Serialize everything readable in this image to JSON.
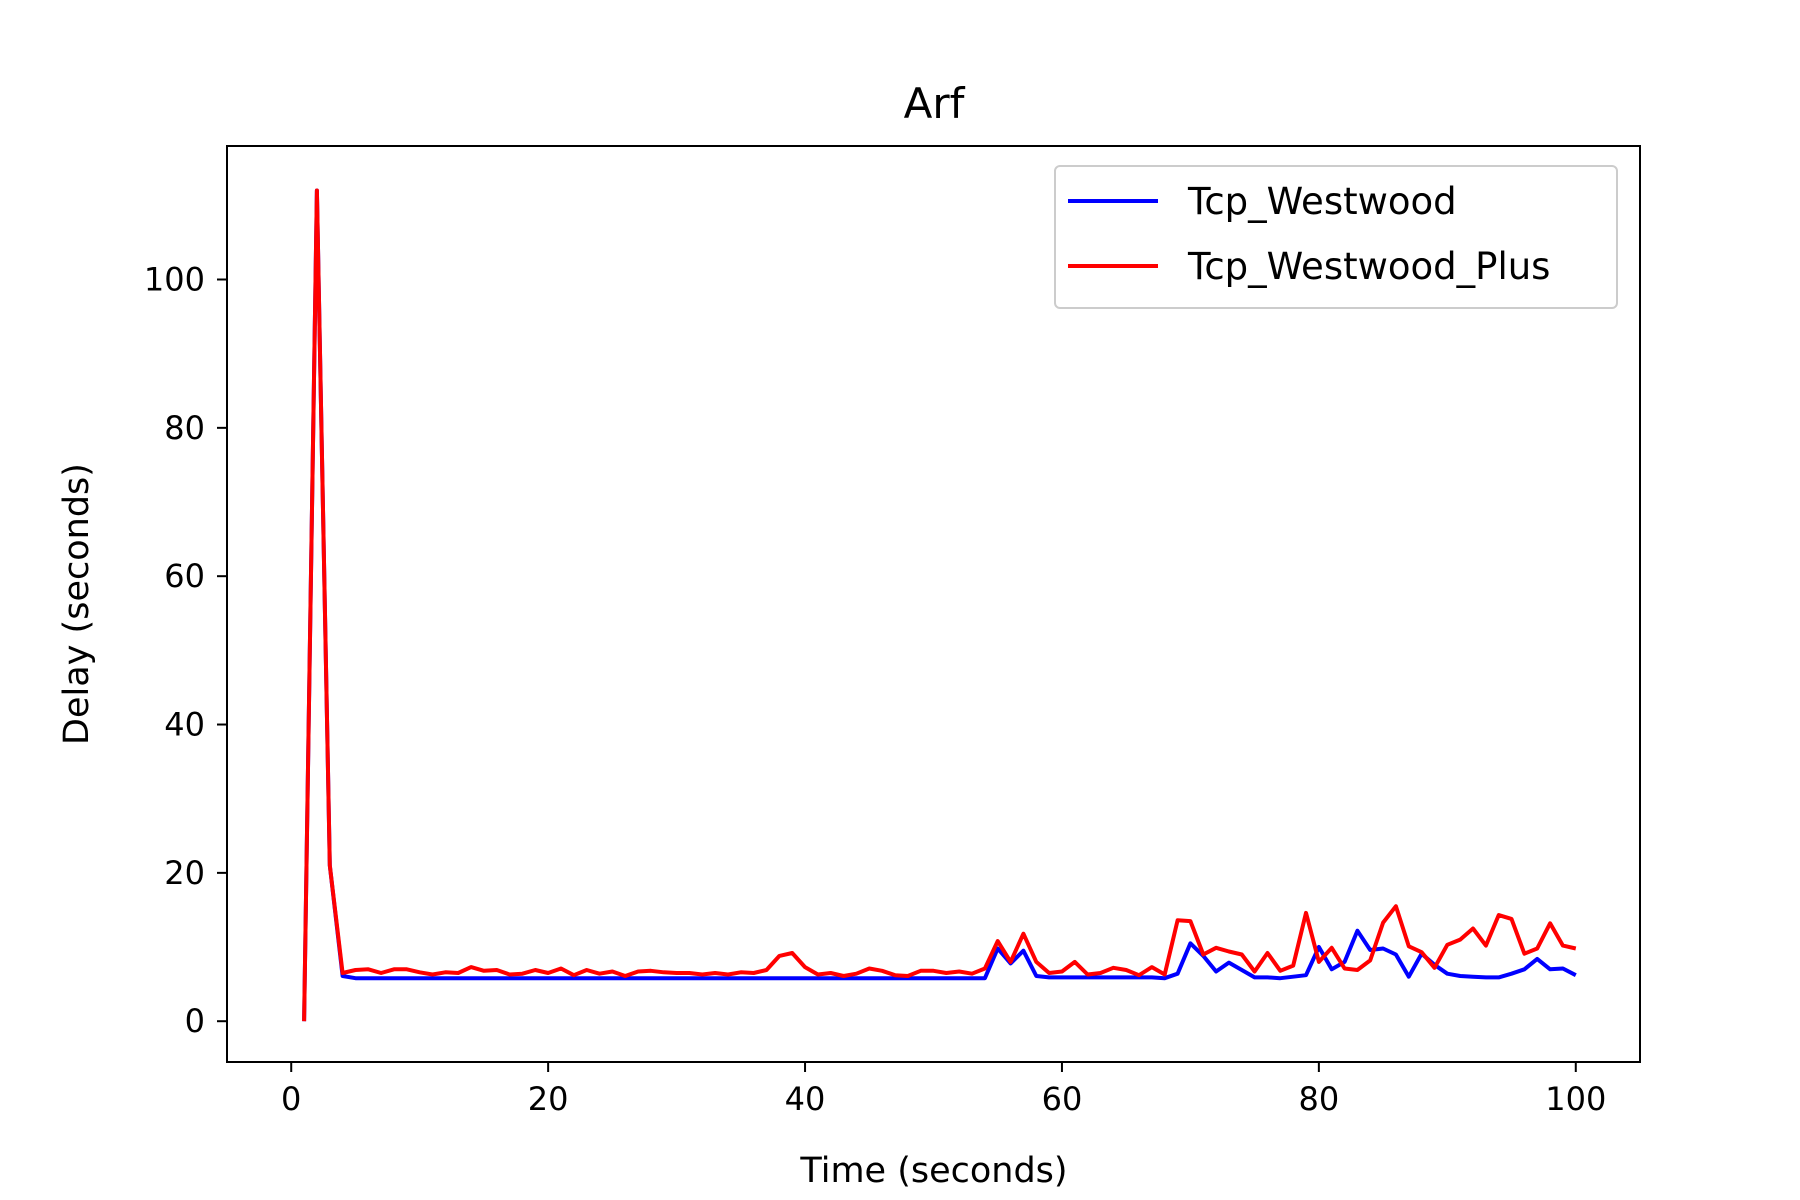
{
  "chart_data": {
    "type": "line",
    "title": "Arf",
    "xlabel": "Time (seconds)",
    "ylabel": "Delay (seconds)",
    "xlim": [
      -5,
      105
    ],
    "ylim": [
      -5.5,
      118
    ],
    "xticks": [
      0,
      20,
      40,
      60,
      80,
      100
    ],
    "yticks": [
      0,
      20,
      40,
      60,
      80,
      100
    ],
    "grid": false,
    "legend_position": "top-right",
    "series": [
      {
        "name": "Tcp_Westwood",
        "color": "#0000ff",
        "x": [
          1,
          2,
          3,
          4,
          5,
          6,
          7,
          8,
          9,
          10,
          11,
          12,
          13,
          14,
          15,
          16,
          17,
          18,
          19,
          20,
          21,
          22,
          23,
          24,
          25,
          26,
          27,
          28,
          29,
          30,
          31,
          32,
          33,
          34,
          35,
          36,
          37,
          38,
          39,
          40,
          41,
          42,
          43,
          44,
          45,
          46,
          47,
          48,
          49,
          50,
          51,
          52,
          53,
          54,
          55,
          56,
          57,
          58,
          59,
          60,
          61,
          62,
          63,
          64,
          65,
          66,
          67,
          68,
          69,
          70,
          71,
          72,
          73,
          74,
          75,
          76,
          77,
          78,
          79,
          80,
          81,
          82,
          83,
          84,
          85,
          86,
          87,
          88,
          89,
          90,
          91,
          92,
          93,
          94,
          95,
          96,
          97,
          98,
          99,
          100
        ],
        "y": [
          0,
          112,
          21,
          6.1,
          5.8,
          5.8,
          5.8,
          5.8,
          5.8,
          5.8,
          5.8,
          5.8,
          5.8,
          5.8,
          5.8,
          5.8,
          5.8,
          5.8,
          5.8,
          5.8,
          5.8,
          5.8,
          5.8,
          5.8,
          5.8,
          5.8,
          5.8,
          5.8,
          5.8,
          5.8,
          5.8,
          5.8,
          5.8,
          5.8,
          5.8,
          5.8,
          5.8,
          5.8,
          5.8,
          5.8,
          5.8,
          5.8,
          5.8,
          5.8,
          5.8,
          5.8,
          5.8,
          5.8,
          5.8,
          5.8,
          5.8,
          5.8,
          5.8,
          5.8,
          9.8,
          7.8,
          9.5,
          6.1,
          5.9,
          5.9,
          5.9,
          5.9,
          5.9,
          5.9,
          5.9,
          5.9,
          5.9,
          5.8,
          6.4,
          10.5,
          8.8,
          6.7,
          7.9,
          6.9,
          5.9,
          5.9,
          5.8,
          6.0,
          6.2,
          10.0,
          7.0,
          8.0,
          12.2,
          9.6,
          9.8,
          9.0,
          6.0,
          9.1,
          7.6,
          6.4,
          6.1,
          6.0,
          5.9,
          5.9,
          6.4,
          7.0,
          8.4,
          7.0,
          7.1,
          6.2
        ]
      },
      {
        "name": "Tcp_Westwood_Plus",
        "color": "#ff0000",
        "x": [
          1,
          2,
          3,
          4,
          5,
          6,
          7,
          8,
          9,
          10,
          11,
          12,
          13,
          14,
          15,
          16,
          17,
          18,
          19,
          20,
          21,
          22,
          23,
          24,
          25,
          26,
          27,
          28,
          29,
          30,
          31,
          32,
          33,
          34,
          35,
          36,
          37,
          38,
          39,
          40,
          41,
          42,
          43,
          44,
          45,
          46,
          47,
          48,
          49,
          50,
          51,
          52,
          53,
          54,
          55,
          56,
          57,
          58,
          59,
          60,
          61,
          62,
          63,
          64,
          65,
          66,
          67,
          68,
          69,
          70,
          71,
          72,
          73,
          74,
          75,
          76,
          77,
          78,
          79,
          80,
          81,
          82,
          83,
          84,
          85,
          86,
          87,
          88,
          89,
          90,
          91,
          92,
          93,
          94,
          95,
          96,
          97,
          98,
          99,
          100
        ],
        "y": [
          0,
          112,
          21,
          6.5,
          6.9,
          7.0,
          6.5,
          7.0,
          7.0,
          6.6,
          6.3,
          6.6,
          6.5,
          7.3,
          6.8,
          6.9,
          6.3,
          6.4,
          6.9,
          6.5,
          7.1,
          6.2,
          6.9,
          6.4,
          6.7,
          6.1,
          6.7,
          6.8,
          6.6,
          6.5,
          6.5,
          6.3,
          6.5,
          6.3,
          6.6,
          6.5,
          6.9,
          8.8,
          9.2,
          7.3,
          6.3,
          6.5,
          6.1,
          6.4,
          7.1,
          6.8,
          6.2,
          6.1,
          6.8,
          6.8,
          6.5,
          6.7,
          6.4,
          7.1,
          10.8,
          8.0,
          11.8,
          8.0,
          6.5,
          6.7,
          8.0,
          6.3,
          6.5,
          7.2,
          6.9,
          6.2,
          7.3,
          6.3,
          13.6,
          13.5,
          9.0,
          9.9,
          9.4,
          9.0,
          6.7,
          9.2,
          6.8,
          7.5,
          14.6,
          8.0,
          9.9,
          7.1,
          6.9,
          8.2,
          13.3,
          15.5,
          10.1,
          9.3,
          7.2,
          10.3,
          11.0,
          12.5,
          10.2,
          14.3,
          13.8,
          9.1,
          9.8,
          13.2,
          10.2,
          9.8
        ]
      }
    ]
  }
}
